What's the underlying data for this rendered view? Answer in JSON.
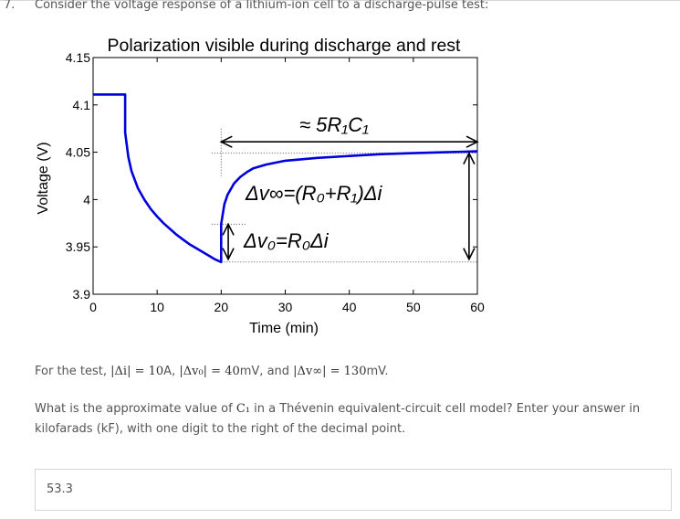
{
  "question": {
    "number": "7.",
    "text": "Consider the voltage response of a lithium-ion cell to a discharge-pulse test:"
  },
  "chart_data": {
    "type": "line",
    "title": "Polarization visible during discharge and rest",
    "xlabel": "Time (min)",
    "ylabel": "Voltage (V)",
    "xlim": [
      0,
      60
    ],
    "ylim": [
      3.9,
      4.15
    ],
    "xticks": [
      "0",
      "10",
      "20",
      "30",
      "40",
      "50",
      "60"
    ],
    "yticks": [
      "3.9",
      "3.95",
      "4",
      "4.05",
      "4.1",
      "4.15"
    ],
    "series": [
      {
        "color": "#0000dd",
        "x": [
          0,
          5,
          5,
          5.5,
          6,
          7,
          8,
          9,
          10,
          11,
          12,
          13,
          14,
          15,
          16,
          17,
          18,
          19,
          20,
          20,
          20.5,
          21,
          22,
          23,
          24,
          25,
          27,
          30,
          35,
          40,
          45,
          50,
          55,
          60
        ],
        "y": [
          4.111,
          4.111,
          4.071,
          4.045,
          4.03,
          4.012,
          4.0,
          3.99,
          3.982,
          3.975,
          3.969,
          3.963,
          3.958,
          3.953,
          3.949,
          3.945,
          3.941,
          3.937,
          3.934,
          3.974,
          3.995,
          4.005,
          4.017,
          4.024,
          4.029,
          4.033,
          4.037,
          4.041,
          4.044,
          4.046,
          4.048,
          4.049,
          4.05,
          4.051
        ]
      }
    ],
    "annotations": {
      "time_const": "≈ 5R₁C₁",
      "dv_inf": "Δv∞=(R₀+R₁)Δi",
      "dv_0": "Δv₀=R₀Δi"
    },
    "grid": false
  },
  "paragraph1": {
    "prefix": "For the test, ",
    "di": "|Δi| = 10",
    "unit_a": "A, ",
    "dv0": "|Δv₀| = 40",
    "unit_mv1": "mV, and ",
    "dvinf": "|Δv∞| = 130",
    "unit_mv2": "mV."
  },
  "paragraph2": {
    "before": "What is the approximate value of ",
    "symbol": "C₁",
    "after": " in a Thévenin equivalent-circuit cell model? Enter your answer in kilofarads (kF), with one digit to the right of the decimal point."
  },
  "answer": {
    "value": "53.3"
  }
}
